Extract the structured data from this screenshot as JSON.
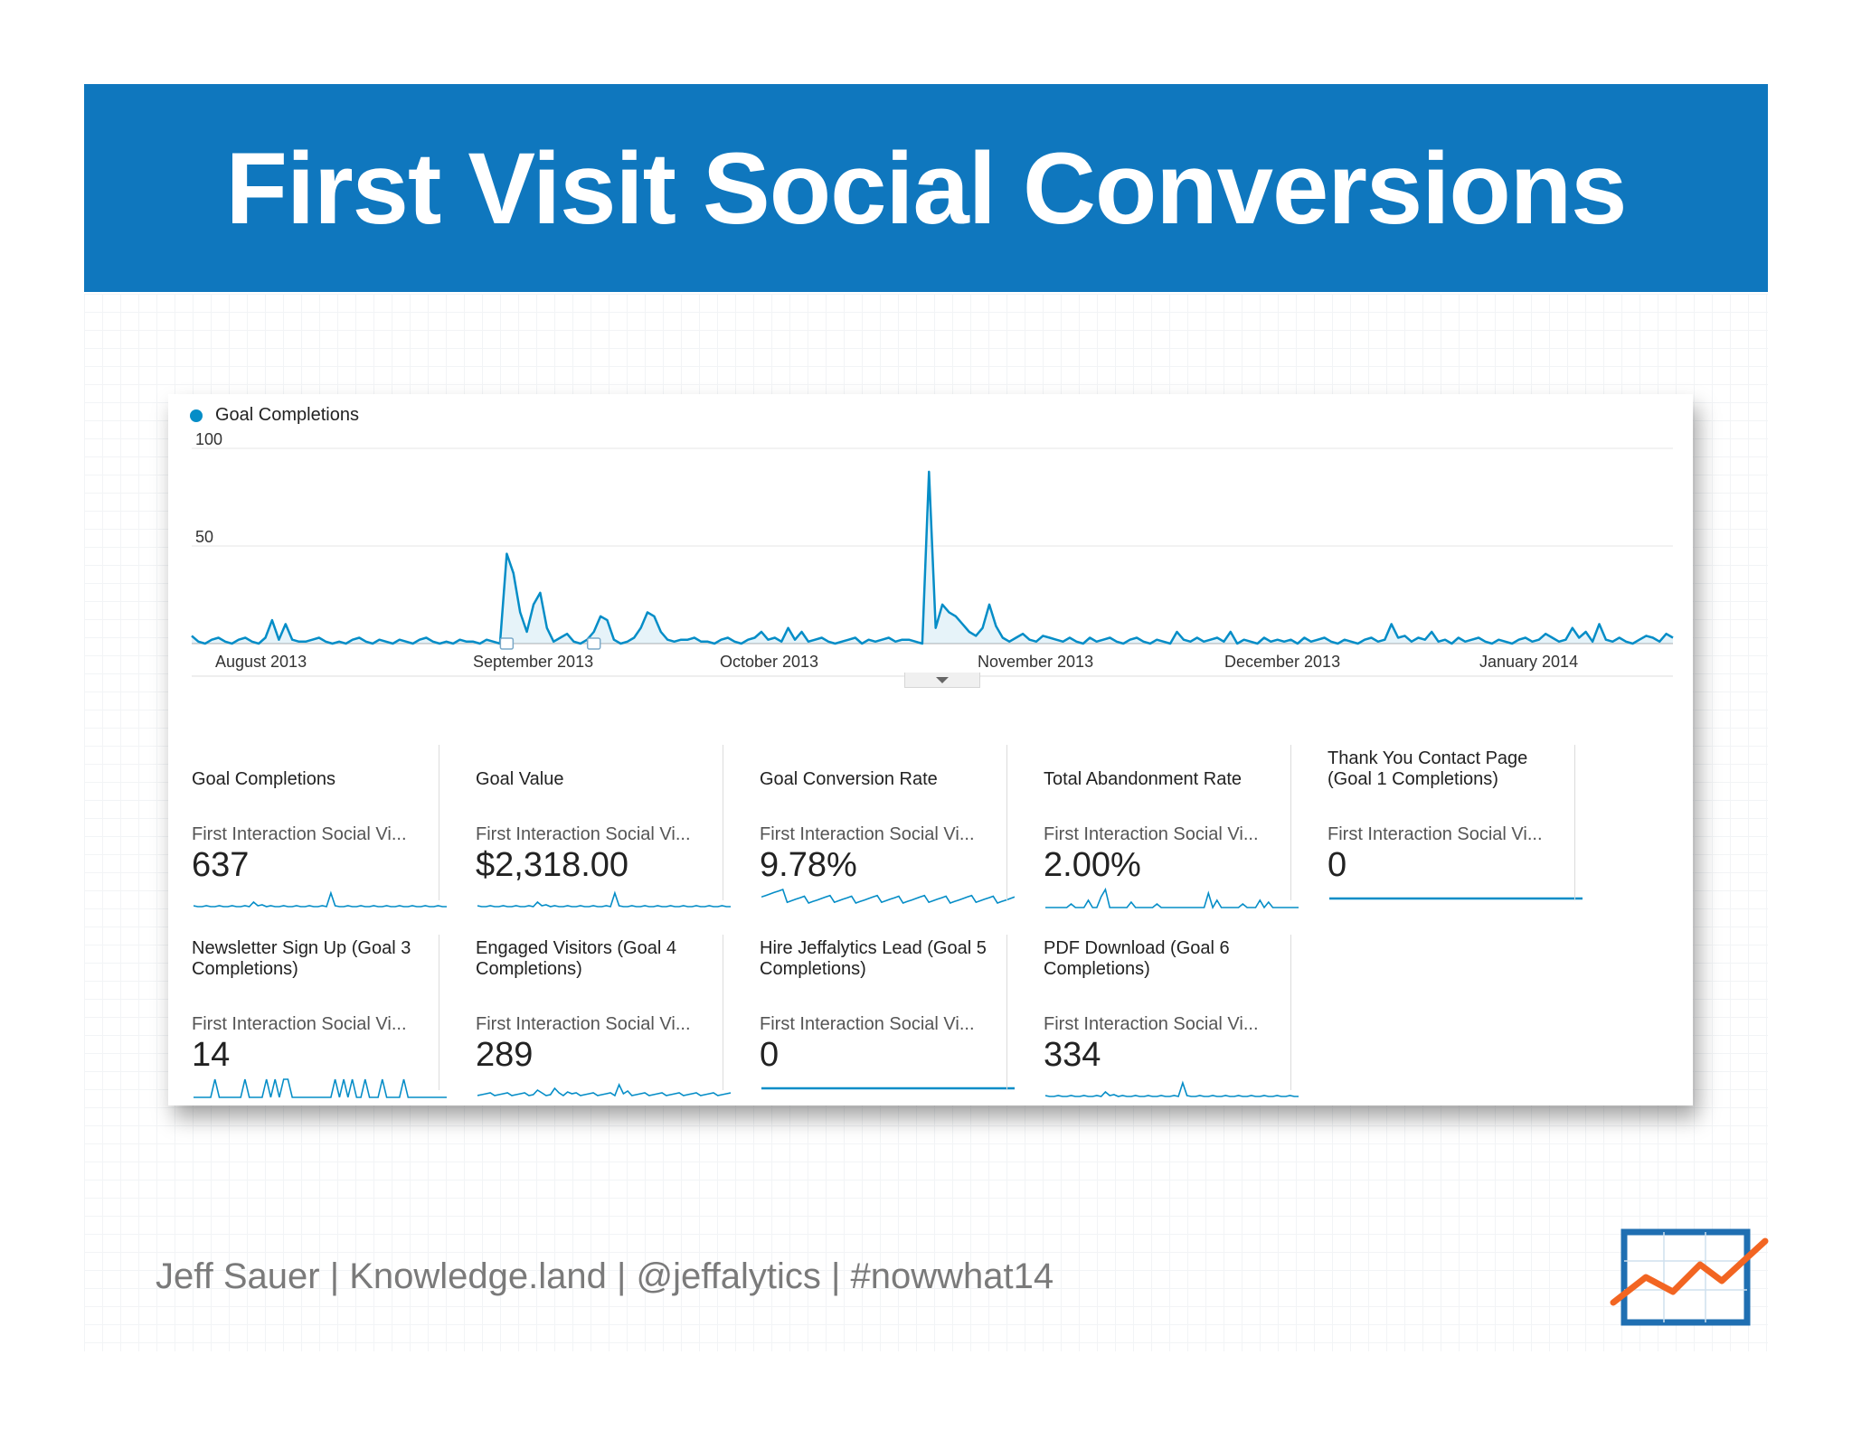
{
  "slide": {
    "title": "First Visit Social Conversions",
    "footer": "Jeff Sauer | Knowledge.land | @jeffalytics | #nowwhat14",
    "accent_color": "#0f77be",
    "logo_icon": "trend-chart-logo"
  },
  "chart_data": {
    "type": "area",
    "legend": "Goal Completions",
    "series_color": "#058dc7",
    "y_ticks": [
      "100",
      "50"
    ],
    "ylim": [
      0,
      100
    ],
    "x_labels": [
      "August 2013",
      "September 2013",
      "October 2013",
      "November 2013",
      "December 2013",
      "January 2014"
    ],
    "values": [
      4,
      1,
      0,
      2,
      3,
      1,
      0,
      2,
      3,
      1,
      0,
      3,
      12,
      2,
      10,
      2,
      1,
      1,
      2,
      3,
      1,
      0,
      1,
      0,
      2,
      3,
      1,
      0,
      2,
      1,
      0,
      2,
      1,
      0,
      2,
      3,
      1,
      0,
      1,
      0,
      2,
      1,
      1,
      0,
      2,
      1,
      0,
      46,
      36,
      16,
      6,
      20,
      26,
      8,
      1,
      3,
      5,
      1,
      0,
      2,
      6,
      14,
      12,
      2,
      0,
      1,
      3,
      8,
      16,
      14,
      6,
      2,
      1,
      2,
      2,
      3,
      1,
      1,
      0,
      2,
      3,
      1,
      0,
      2,
      3,
      6,
      2,
      3,
      1,
      8,
      2,
      6,
      1,
      2,
      3,
      1,
      0,
      1,
      2,
      3,
      0,
      2,
      1,
      2,
      3,
      1,
      2,
      2,
      1,
      0,
      88,
      8,
      20,
      16,
      14,
      10,
      6,
      4,
      8,
      20,
      9,
      3,
      1,
      3,
      5,
      2,
      1,
      4,
      3,
      2,
      1,
      3,
      1,
      0,
      3,
      1,
      2,
      3,
      1,
      0,
      2,
      3,
      1,
      0,
      2,
      1,
      0,
      6,
      2,
      1,
      3,
      1,
      2,
      3,
      1,
      6,
      0,
      2,
      1,
      0,
      3,
      1,
      2,
      1,
      2,
      0,
      3,
      1,
      2,
      3,
      1,
      0,
      2,
      1,
      0,
      2,
      3,
      1,
      2,
      10,
      3,
      4,
      1,
      3,
      2,
      6,
      1,
      2,
      0,
      3,
      1,
      2,
      3,
      1,
      0,
      2,
      1,
      0,
      2,
      3,
      1,
      2,
      5,
      3,
      1,
      2,
      8,
      3,
      6,
      1,
      10,
      2,
      1,
      3,
      1,
      0,
      2,
      4,
      3,
      1,
      5,
      3
    ]
  },
  "metrics": [
    {
      "title": "Goal Completions",
      "sub": "First Interaction Social Vi...",
      "value": "637",
      "spark": "peaky"
    },
    {
      "title": "Goal Value",
      "sub": "First Interaction Social Vi...",
      "value": "$2,318.00",
      "spark": "peaky"
    },
    {
      "title": "Goal Conversion Rate",
      "sub": "First Interaction Social Vi...",
      "value": "9.78%",
      "spark": "noisy"
    },
    {
      "title": "Total Abandonment Rate",
      "sub": "First Interaction Social Vi...",
      "value": "2.00%",
      "spark": "bars"
    },
    {
      "title": "Thank You Contact Page (Goal 1 Completions)",
      "sub": "First Interaction Social Vi...",
      "value": "0",
      "spark": "flat"
    },
    {
      "title": "Newsletter Sign Up (Goal 3 Completions)",
      "sub": "First Interaction Social Vi...",
      "value": "14",
      "spark": "bars2"
    },
    {
      "title": "Engaged Visitors (Goal 4 Completions)",
      "sub": "First Interaction Social Vi...",
      "value": "289",
      "spark": "wiggly"
    },
    {
      "title": "Hire Jeffalytics Lead (Goal 5 Completions)",
      "sub": "First Interaction Social Vi...",
      "value": "0",
      "spark": "flat"
    },
    {
      "title": "PDF Download (Goal 6 Completions)",
      "sub": "First Interaction Social Vi...",
      "value": "334",
      "spark": "peaky"
    }
  ]
}
